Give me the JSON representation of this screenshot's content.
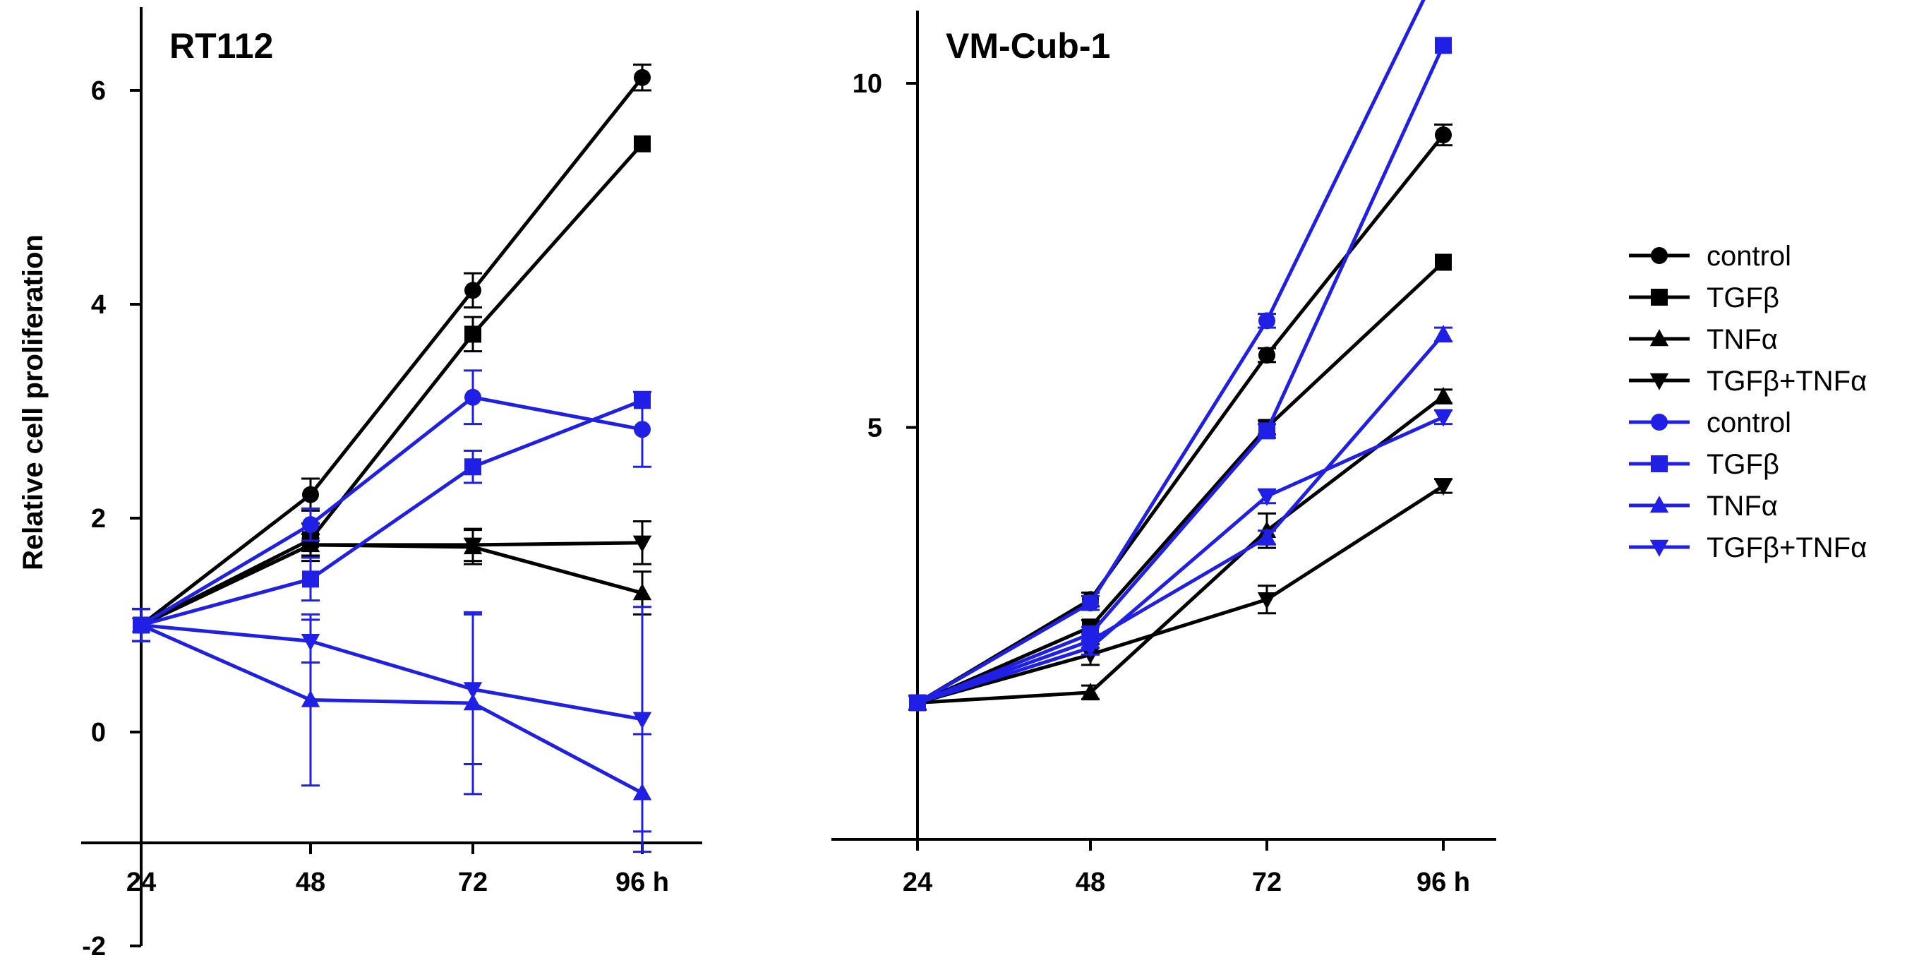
{
  "chart_data": [
    {
      "type": "line",
      "title": "RT112",
      "ylabel": "Relative cell proliferation",
      "xlabel": "",
      "categories": [
        "24",
        "48",
        "72",
        "96 h"
      ],
      "ylim": [
        -2,
        7
      ],
      "yticks": [
        "-2",
        "0",
        "2",
        "4",
        "6"
      ],
      "grid": false,
      "series": [
        {
          "name": "control",
          "color": "#000000",
          "marker": "circle",
          "values": [
            1.0,
            2.22,
            4.13,
            6.12
          ],
          "errors": [
            0.15,
            0.15,
            0.16,
            0.12
          ]
        },
        {
          "name": "TGFβ",
          "color": "#000000",
          "marker": "square",
          "values": [
            1.0,
            1.8,
            3.72,
            5.5
          ],
          "errors": [
            0.15,
            0.15,
            0.16,
            0.0
          ]
        },
        {
          "name": "TNFα",
          "color": "#000000",
          "marker": "triangle-up",
          "values": [
            1.0,
            1.75,
            1.73,
            1.3
          ],
          "errors": [
            0.15,
            0.15,
            0.16,
            0.2
          ]
        },
        {
          "name": "TGFβ+TNFα",
          "color": "#000000",
          "marker": "triangle-down",
          "values": [
            1.0,
            1.75,
            1.75,
            1.77
          ],
          "errors": [
            0.15,
            0.1,
            0.15,
            0.2
          ]
        },
        {
          "name": "control",
          "color": "#1f1fe6",
          "marker": "circle",
          "values": [
            1.0,
            1.94,
            3.13,
            2.83
          ],
          "errors": [
            0.15,
            0.15,
            0.25,
            0.35
          ]
        },
        {
          "name": "TGFβ",
          "color": "#1f1fe6",
          "marker": "square",
          "values": [
            1.0,
            1.43,
            2.48,
            3.1
          ],
          "errors": [
            0.15,
            0.2,
            0.15,
            0.0
          ]
        },
        {
          "name": "TNFα",
          "color": "#1f1fe6",
          "marker": "triangle-up",
          "values": [
            1.0,
            0.3,
            0.27,
            -0.57
          ],
          "errors": [
            0.15,
            0.8,
            0.85,
            0.55
          ]
        },
        {
          "name": "TGFβ+TNFα",
          "color": "#1f1fe6",
          "marker": "triangle-down",
          "values": [
            1.0,
            0.85,
            0.4,
            0.12
          ],
          "errors": [
            0.15,
            0.2,
            0.7,
            1.05
          ]
        }
      ]
    },
    {
      "type": "line",
      "title": "VM-Cub-1",
      "ylabel": "",
      "xlabel": "",
      "categories": [
        "24",
        "48",
        "72",
        "96 h"
      ],
      "ylim": [
        0,
        12
      ],
      "yticks": [
        "5",
        "10"
      ],
      "grid": false,
      "series": [
        {
          "name": "control",
          "color": "#000000",
          "marker": "circle",
          "values": [
            1.0,
            2.5,
            6.05,
            9.25
          ],
          "errors": [
            0.1,
            0.1,
            0.1,
            0.15
          ]
        },
        {
          "name": "TGFβ",
          "color": "#000000",
          "marker": "square",
          "values": [
            1.0,
            2.1,
            5.0,
            7.4
          ],
          "errors": [
            0.1,
            0.1,
            0.1,
            0.0
          ]
        },
        {
          "name": "TNFα",
          "color": "#000000",
          "marker": "triangle-up",
          "values": [
            1.0,
            1.15,
            3.5,
            5.45
          ],
          "errors": [
            0.1,
            0.1,
            0.25,
            0.1
          ]
        },
        {
          "name": "TGFβ+TNFα",
          "color": "#000000",
          "marker": "triangle-down",
          "values": [
            1.0,
            1.7,
            2.5,
            4.15
          ],
          "errors": [
            0.1,
            0.15,
            0.2,
            0.1
          ]
        },
        {
          "name": "control",
          "color": "#1f1fe6",
          "marker": "circle",
          "values": [
            1.0,
            2.45,
            6.55,
            11.8
          ],
          "errors": [
            0.1,
            0.1,
            0.1,
            0.1
          ]
        },
        {
          "name": "TGFβ",
          "color": "#1f1fe6",
          "marker": "square",
          "values": [
            1.0,
            2.0,
            4.95,
            10.55
          ],
          "errors": [
            0.1,
            0.1,
            0.1,
            0.0
          ]
        },
        {
          "name": "TNFα",
          "color": "#1f1fe6",
          "marker": "triangle-up",
          "values": [
            1.0,
            1.9,
            3.4,
            6.35
          ],
          "errors": [
            0.1,
            0.1,
            0.1,
            0.1
          ]
        },
        {
          "name": "TGFβ+TNFα",
          "color": "#1f1fe6",
          "marker": "triangle-down",
          "values": [
            1.0,
            1.8,
            4.0,
            5.15
          ],
          "errors": [
            0.1,
            0.1,
            0.1,
            0.1
          ]
        }
      ]
    }
  ],
  "legend": {
    "placement": "right",
    "items": [
      {
        "label": "control",
        "color": "#000000",
        "marker": "circle"
      },
      {
        "label": "TGFβ",
        "color": "#000000",
        "marker": "square"
      },
      {
        "label": "TNFα",
        "color": "#000000",
        "marker": "triangle-up"
      },
      {
        "label": "TGFβ+TNFα",
        "color": "#000000",
        "marker": "triangle-down"
      },
      {
        "label": "control",
        "color": "#1f1fe6",
        "marker": "circle"
      },
      {
        "label": "TGFβ",
        "color": "#1f1fe6",
        "marker": "square"
      },
      {
        "label": "TNFα",
        "color": "#1f1fe6",
        "marker": "triangle-up"
      },
      {
        "label": "TGFβ+TNFα",
        "color": "#1f1fe6",
        "marker": "triangle-down"
      }
    ]
  }
}
